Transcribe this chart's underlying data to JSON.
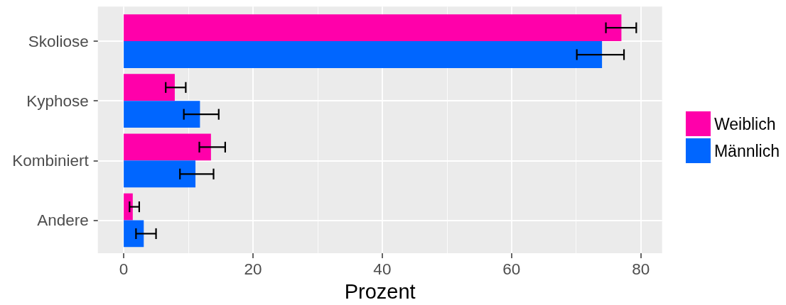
{
  "chart_data": {
    "type": "bar",
    "orientation": "horizontal",
    "xlabel": "Prozent",
    "categories": [
      "Skoliose",
      "Kyphose",
      "Kombiniert",
      "Andere"
    ],
    "series": [
      {
        "name": "Weiblich",
        "color": "#ff00aa",
        "values": [
          77,
          7.9,
          13.5,
          1.4
        ],
        "errors": [
          [
            74.6,
            79.3
          ],
          [
            6.5,
            9.6
          ],
          [
            11.7,
            15.7
          ],
          [
            0.9,
            2.4
          ]
        ]
      },
      {
        "name": "Männlich",
        "color": "#0066ff",
        "values": [
          74,
          11.8,
          11.1,
          3.1
        ],
        "errors": [
          [
            70.1,
            77.4
          ],
          [
            9.3,
            14.7
          ],
          [
            8.7,
            13.9
          ],
          [
            1.9,
            5.0
          ]
        ]
      }
    ],
    "xlim": [
      -4,
      83.3
    ],
    "xticks": [
      0,
      20,
      40,
      60,
      80
    ],
    "grid": true,
    "legend": "right"
  }
}
